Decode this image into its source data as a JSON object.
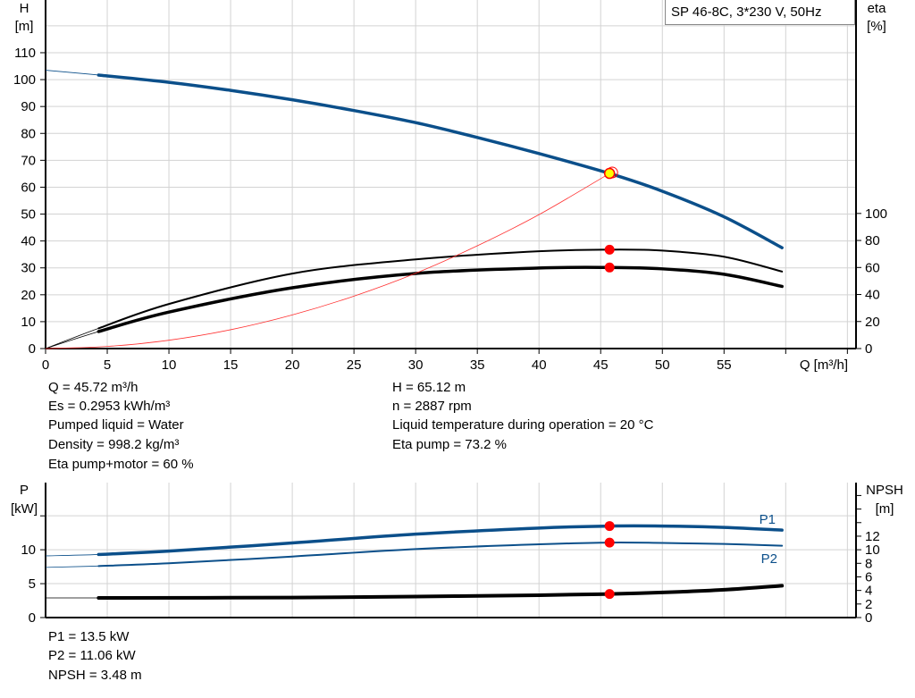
{
  "chart_data": [
    {
      "type": "line",
      "title": "SP 46-8C, 3*230 V, 50Hz",
      "xlabel": "Q [m³/h]",
      "ylabel_left": [
        "H",
        "[m]"
      ],
      "ylabel_right": [
        "eta",
        "[%]"
      ],
      "xlim": [
        0,
        65.7
      ],
      "ylim_left": [
        0,
        129.6
      ],
      "ylim_right": [
        0,
        258
      ],
      "x_ticks": [
        0,
        5,
        10,
        15,
        20,
        25,
        30,
        35,
        40,
        45,
        50,
        55
      ],
      "y_ticks_left": [
        0,
        10,
        20,
        30,
        40,
        50,
        60,
        70,
        80,
        90,
        100,
        110
      ],
      "y_ticks_right": [
        0,
        20,
        40,
        60,
        80,
        100
      ],
      "grid": true,
      "operating_range": [
        4.3,
        59.7
      ],
      "series": [
        {
          "id": "H",
          "axis": "left",
          "color": "#0b4f8a",
          "x": [
            0,
            4.3,
            10,
            15,
            20,
            25,
            30,
            35,
            40,
            45.72,
            50,
            55,
            59.7
          ],
          "y": [
            103.5,
            101.7,
            99,
            96,
            92.5,
            88.5,
            84,
            78.5,
            72.5,
            65.1,
            58.5,
            49,
            37.5
          ]
        },
        {
          "id": "eta-pump",
          "axis": "right",
          "color": "#000000",
          "x": [
            0,
            4.3,
            10,
            20,
            30,
            40,
            45.72,
            50,
            55,
            59.7
          ],
          "y": [
            0,
            15,
            33,
            55.5,
            66,
            72,
            73.2,
            72.5,
            68,
            57
          ]
        },
        {
          "id": "eta-pump-motor",
          "axis": "right",
          "color": "#000000",
          "x": [
            0,
            4.3,
            10,
            20,
            30,
            40,
            45.72,
            50,
            55,
            59.7
          ],
          "y": [
            0,
            12.6,
            27,
            45,
            55.6,
            59.6,
            60,
            59,
            55,
            46
          ]
        },
        {
          "id": "system-curve",
          "axis": "left",
          "color": "#ff3030",
          "x": [
            0,
            5,
            10,
            15,
            20,
            25,
            30,
            35,
            40,
            45.72
          ],
          "y": [
            0,
            0.78,
            3.1,
            7.0,
            12.5,
            19.5,
            28.0,
            38.2,
            49.8,
            65.12
          ]
        }
      ],
      "duty_point": {
        "Q": 45.72,
        "H": 65.12,
        "eta_pump": 73.2,
        "eta_pump_motor": 60
      }
    },
    {
      "type": "line",
      "ylabel_left": [
        "P",
        "[kW]"
      ],
      "ylabel_right": [
        "NPSH",
        "[m]"
      ],
      "xlim": [
        0,
        65.7
      ],
      "ylim_left": [
        0,
        19.9
      ],
      "ylim_right": [
        0,
        19.9
      ],
      "y_ticks_left": [
        0,
        5,
        10
      ],
      "y_ticks_right": [
        0,
        2,
        4,
        6,
        8,
        10,
        12
      ],
      "grid": true,
      "operating_range": [
        4.3,
        59.7
      ],
      "series": [
        {
          "id": "P1",
          "name": "P1",
          "axis": "left",
          "color": "#0b4f8a",
          "x": [
            0,
            4.3,
            10,
            20,
            30,
            40,
            45.72,
            50,
            55,
            59.7
          ],
          "y": [
            9.1,
            9.3,
            9.8,
            11.0,
            12.3,
            13.2,
            13.5,
            13.5,
            13.3,
            12.9
          ]
        },
        {
          "id": "P2",
          "name": "P2",
          "axis": "left",
          "color": "#0b4f8a",
          "x": [
            0,
            4.3,
            10,
            20,
            30,
            40,
            45.72,
            50,
            55,
            59.7
          ],
          "y": [
            7.4,
            7.6,
            8.0,
            9.0,
            10.1,
            10.8,
            11.06,
            11.0,
            10.85,
            10.6
          ]
        },
        {
          "id": "NPSH",
          "axis": "right",
          "color": "#000000",
          "x": [
            0,
            4.3,
            20,
            30,
            40,
            45.72,
            50,
            55,
            59.7
          ],
          "y": [
            2.9,
            2.9,
            2.95,
            3.1,
            3.3,
            3.48,
            3.7,
            4.1,
            4.7
          ]
        }
      ],
      "duty_point": {
        "Q": 45.72,
        "P1": 13.5,
        "P2": 11.06,
        "NPSH": 3.48
      }
    }
  ],
  "info_top": {
    "col1": [
      "Q = 45.72 m³/h",
      "Es = 0.2953 kWh/m³",
      "Pumped liquid = Water",
      "Density = 998.2 kg/m³",
      "Eta pump+motor = 60 %"
    ],
    "col2": [
      "H = 65.12 m",
      "n = 2887 rpm",
      "Liquid temperature during operation = 20 °C",
      "Eta pump = 73.2 %"
    ]
  },
  "info_bottom": [
    "P1 = 13.5 kW",
    "P2 = 11.06 kW",
    "NPSH = 3.48 m"
  ],
  "colors": {
    "grid": "#d3d3d3",
    "curve_blue": "#0b4f8a",
    "marker": "#ff0000",
    "duty_fill": "#ffff00"
  }
}
